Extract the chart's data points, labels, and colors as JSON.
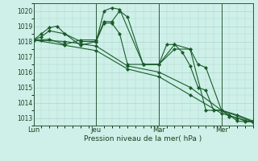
{
  "bg_color": "#cef0e8",
  "grid_color": "#aad8cc",
  "line_color": "#1a5c2a",
  "marker_color": "#1a5c2a",
  "xlabel": "Pression niveau de la mer( hPa )",
  "ylim": [
    1012.5,
    1020.5
  ],
  "yticks": [
    1013,
    1014,
    1015,
    1016,
    1017,
    1018,
    1019,
    1020
  ],
  "xtick_labels": [
    "Lun",
    "Jeu",
    "Mar",
    "Mer"
  ],
  "xtick_positions": [
    0,
    48,
    96,
    144
  ],
  "total_hours": 168,
  "series1_x": [
    0,
    6,
    12,
    24,
    36,
    48,
    54,
    60,
    66,
    72,
    84,
    96,
    102,
    108,
    114,
    120,
    126,
    132,
    138,
    144,
    150,
    156,
    162,
    168
  ],
  "series1_y": [
    1018.1,
    1018.1,
    1018.15,
    1017.8,
    1018.1,
    1018.1,
    1019.3,
    1019.3,
    1020.0,
    1019.6,
    1016.5,
    1016.5,
    1017.8,
    1017.8,
    1017.3,
    1016.4,
    1015.0,
    1014.8,
    1013.5,
    1013.5,
    1013.2,
    1012.8,
    1012.75,
    1012.75
  ],
  "series2_x": [
    0,
    6,
    12,
    18,
    24,
    36,
    48,
    54,
    60,
    66,
    84,
    96,
    108,
    120,
    132,
    144,
    150,
    156,
    162,
    168
  ],
  "series2_y": [
    1018.1,
    1018.5,
    1018.9,
    1019.0,
    1018.5,
    1018.0,
    1018.0,
    1020.0,
    1020.2,
    1020.1,
    1016.5,
    1016.5,
    1017.5,
    1017.5,
    1013.5,
    1013.5,
    1013.1,
    1013.0,
    1012.8,
    1012.75
  ],
  "series3_x": [
    0,
    6,
    12,
    24,
    36,
    48,
    54,
    60,
    66,
    72,
    84,
    96,
    108,
    120,
    126,
    132,
    144,
    156,
    168
  ],
  "series3_y": [
    1018.1,
    1018.3,
    1018.7,
    1018.5,
    1017.75,
    1018.0,
    1019.2,
    1019.2,
    1018.5,
    1016.5,
    1016.5,
    1016.5,
    1017.8,
    1017.5,
    1016.5,
    1016.3,
    1013.5,
    1013.2,
    1012.8
  ],
  "series4_x": [
    0,
    24,
    48,
    72,
    96,
    120,
    144,
    168
  ],
  "series4_y": [
    1018.1,
    1018.0,
    1017.7,
    1016.4,
    1016.0,
    1015.0,
    1013.5,
    1012.75
  ],
  "series5_x": [
    0,
    24,
    48,
    72,
    96,
    120,
    144,
    168
  ],
  "series5_y": [
    1018.1,
    1017.75,
    1017.4,
    1016.2,
    1015.7,
    1014.5,
    1013.3,
    1012.7
  ],
  "vlines_x": [
    0,
    48,
    96,
    144
  ],
  "figsize": [
    3.2,
    2.0
  ],
  "dpi": 100
}
